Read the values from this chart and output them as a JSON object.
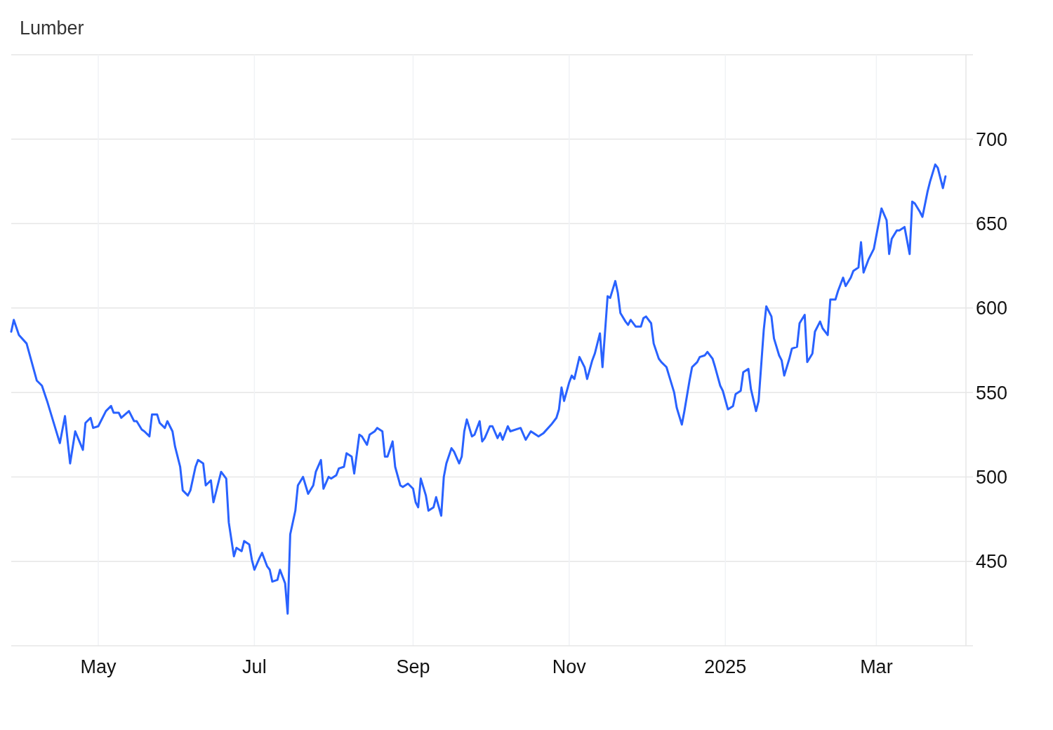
{
  "chart_data": {
    "type": "line",
    "title": "Lumber",
    "x": [
      "2024-03-28",
      "2024-03-29",
      "2024-03-31",
      "2024-04-03",
      "2024-04-07",
      "2024-04-09",
      "2024-04-11",
      "2024-04-16",
      "2024-04-18",
      "2024-04-20",
      "2024-04-22",
      "2024-04-25",
      "2024-04-26",
      "2024-04-28",
      "2024-04-29",
      "2024-05-01",
      "2024-05-04",
      "2024-05-06",
      "2024-05-07",
      "2024-05-09",
      "2024-05-10",
      "2024-05-13",
      "2024-05-15",
      "2024-05-16",
      "2024-05-18",
      "2024-05-19",
      "2024-05-21",
      "2024-05-22",
      "2024-05-24",
      "2024-05-25",
      "2024-05-27",
      "2024-05-28",
      "2024-05-30",
      "2024-05-31",
      "2024-06-02",
      "2024-06-03",
      "2024-06-05",
      "2024-06-06",
      "2024-06-08",
      "2024-06-09",
      "2024-06-11",
      "2024-06-12",
      "2024-06-14",
      "2024-06-15",
      "2024-06-18",
      "2024-06-20",
      "2024-06-21",
      "2024-06-23",
      "2024-06-24",
      "2024-06-26",
      "2024-06-27",
      "2024-06-29",
      "2024-06-30",
      "2024-07-01",
      "2024-07-03",
      "2024-07-04",
      "2024-07-06",
      "2024-07-07",
      "2024-07-08",
      "2024-07-10",
      "2024-07-11",
      "2024-07-13",
      "2024-07-14",
      "2024-07-15",
      "2024-07-17",
      "2024-07-18",
      "2024-07-20",
      "2024-07-22",
      "2024-07-24",
      "2024-07-25",
      "2024-07-27",
      "2024-07-28",
      "2024-07-30",
      "2024-07-31",
      "2024-08-02",
      "2024-08-03",
      "2024-08-05",
      "2024-08-06",
      "2024-08-08",
      "2024-08-09",
      "2024-08-11",
      "2024-08-12",
      "2024-08-14",
      "2024-08-15",
      "2024-08-17",
      "2024-08-18",
      "2024-08-20",
      "2024-08-21",
      "2024-08-22",
      "2024-08-24",
      "2024-08-25",
      "2024-08-27",
      "2024-08-28",
      "2024-08-30",
      "2024-09-01",
      "2024-09-02",
      "2024-09-03",
      "2024-09-04",
      "2024-09-06",
      "2024-09-07",
      "2024-09-09",
      "2024-09-10",
      "2024-09-12",
      "2024-09-13",
      "2024-09-14",
      "2024-09-16",
      "2024-09-17",
      "2024-09-19",
      "2024-09-20",
      "2024-09-21",
      "2024-09-22",
      "2024-09-24",
      "2024-09-25",
      "2024-09-27",
      "2024-09-28",
      "2024-09-29",
      "2024-10-01",
      "2024-10-02",
      "2024-10-04",
      "2024-10-05",
      "2024-10-06",
      "2024-10-08",
      "2024-10-09",
      "2024-10-13",
      "2024-10-15",
      "2024-10-17",
      "2024-10-20",
      "2024-10-22",
      "2024-10-25",
      "2024-10-27",
      "2024-10-28",
      "2024-10-29",
      "2024-10-30",
      "2024-11-01",
      "2024-11-02",
      "2024-11-03",
      "2024-11-05",
      "2024-11-07",
      "2024-11-08",
      "2024-11-10",
      "2024-11-11",
      "2024-11-13",
      "2024-11-14",
      "2024-11-16",
      "2024-11-17",
      "2024-11-19",
      "2024-11-20",
      "2024-11-21",
      "2024-11-23",
      "2024-11-24",
      "2024-11-25",
      "2024-11-27",
      "2024-11-29",
      "2024-11-30",
      "2024-12-01",
      "2024-12-03",
      "2024-12-04",
      "2024-12-06",
      "2024-12-07",
      "2024-12-09",
      "2024-12-10",
      "2024-12-12",
      "2024-12-13",
      "2024-12-15",
      "2024-12-16",
      "2024-12-18",
      "2024-12-19",
      "2024-12-21",
      "2024-12-22",
      "2024-12-24",
      "2024-12-25",
      "2024-12-27",
      "2024-12-28",
      "2024-12-30",
      "2024-12-31",
      "2025-01-02",
      "2025-01-04",
      "2025-01-05",
      "2025-01-07",
      "2025-01-08",
      "2025-01-10",
      "2025-01-11",
      "2025-01-13",
      "2025-01-14",
      "2025-01-16",
      "2025-01-17",
      "2025-01-19",
      "2025-01-20",
      "2025-01-22",
      "2025-01-23",
      "2025-01-24",
      "2025-01-26",
      "2025-01-27",
      "2025-01-29",
      "2025-01-30",
      "2025-02-01",
      "2025-02-02",
      "2025-02-04",
      "2025-02-05",
      "2025-02-07",
      "2025-02-08",
      "2025-02-10",
      "2025-02-11",
      "2025-02-13",
      "2025-02-14",
      "2025-02-16",
      "2025-02-17",
      "2025-02-19",
      "2025-02-20",
      "2025-02-22",
      "2025-02-23",
      "2025-02-24",
      "2025-02-26",
      "2025-02-28",
      "2025-03-02",
      "2025-03-03",
      "2025-03-05",
      "2025-03-06",
      "2025-03-07",
      "2025-03-09",
      "2025-03-10",
      "2025-03-12",
      "2025-03-14",
      "2025-03-15",
      "2025-03-16",
      "2025-03-18",
      "2025-03-19",
      "2025-03-21",
      "2025-03-22",
      "2025-03-24",
      "2025-03-25",
      "2025-03-27",
      "2025-03-28"
    ],
    "series": [
      {
        "color": "#2962ff",
        "values": [
          586,
          593,
          584,
          579,
          557,
          554,
          545,
          520,
          536,
          508,
          527,
          516,
          532,
          535,
          529,
          530,
          539,
          542,
          538,
          538,
          535,
          539,
          533,
          533,
          528,
          527,
          524,
          537,
          537,
          532,
          529,
          533,
          527,
          518,
          506,
          492,
          489,
          492,
          506,
          510,
          508,
          495,
          498,
          485,
          503,
          499,
          473,
          453,
          458,
          456,
          462,
          460,
          451,
          445,
          452,
          455,
          447,
          445,
          438,
          439,
          445,
          437,
          419,
          466,
          480,
          495,
          500,
          490,
          495,
          503,
          510,
          493,
          500,
          499,
          501,
          505,
          506,
          514,
          512,
          502,
          525,
          524,
          519,
          525,
          527,
          529,
          527,
          512,
          512,
          521,
          506,
          495,
          494,
          496,
          493,
          485,
          482,
          499,
          489,
          480,
          482,
          488,
          477,
          500,
          508,
          517,
          515,
          508,
          512,
          527,
          534,
          524,
          525,
          533,
          521,
          523,
          530,
          530,
          523,
          526,
          522,
          530,
          527,
          529,
          522,
          527,
          524,
          526,
          531,
          535,
          540,
          553,
          545,
          556,
          560,
          558,
          571,
          565,
          558,
          569,
          573,
          585,
          565,
          607,
          606,
          616,
          609,
          597,
          592,
          590,
          593,
          589,
          589,
          594,
          595,
          591,
          579,
          570,
          568,
          565,
          560,
          550,
          541,
          531,
          539,
          557,
          565,
          568,
          571,
          572,
          574,
          570,
          565,
          554,
          551,
          540,
          542,
          549,
          551,
          562,
          564,
          552,
          539,
          545,
          587,
          601,
          595,
          582,
          572,
          569,
          560,
          570,
          576,
          577,
          591,
          596,
          568,
          573,
          586,
          592,
          588,
          584,
          605,
          605,
          610,
          618,
          613,
          618,
          622,
          624,
          639,
          621,
          629,
          635,
          651,
          659,
          652,
          632,
          641,
          646,
          646,
          648,
          632,
          663,
          662,
          657,
          654,
          669,
          675,
          685,
          683,
          671,
          678
        ]
      }
    ],
    "xlim": [
      "2024-03-28",
      "2025-04-05"
    ],
    "xticks": [
      {
        "value": "2024-05-01",
        "label": "May"
      },
      {
        "value": "2024-07-01",
        "label": "Jul"
      },
      {
        "value": "2024-09-01",
        "label": "Sep"
      },
      {
        "value": "2024-11-01",
        "label": "Nov"
      },
      {
        "value": "2025-01-01",
        "label": "2025"
      },
      {
        "value": "2025-03-01",
        "label": "Mar"
      }
    ],
    "ylim": [
      400,
      750
    ],
    "yticks": [
      450,
      500,
      550,
      600,
      650,
      700
    ],
    "grid": true
  }
}
